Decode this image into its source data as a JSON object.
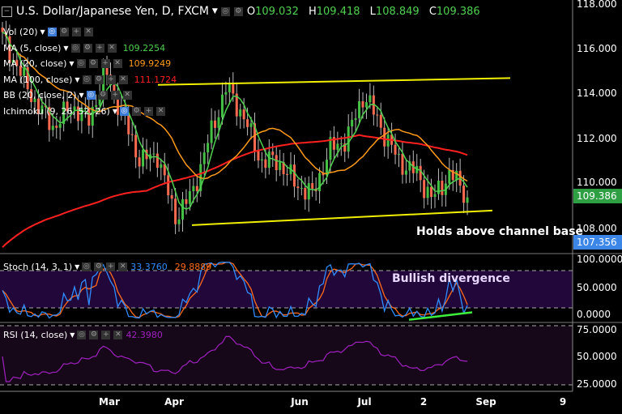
{
  "header": {
    "title": "U.S. Dollar/Japanese Yen, D, FXCM",
    "open_label": "O",
    "open": "109.032",
    "high_label": "H",
    "high": "109.418",
    "low_label": "L",
    "low": "108.849",
    "close_label": "C",
    "close": "109.386"
  },
  "indicators": [
    {
      "label": "Vol (20)",
      "value": "",
      "color": "#ffffff"
    },
    {
      "label": "MA (5, close)",
      "value": "109.2254",
      "color": "#4fd14f"
    },
    {
      "label": "MA (20, close)",
      "value": "109.9249",
      "color": "#ff9a1a"
    },
    {
      "label": "MA (100, close)",
      "value": "111.1724",
      "color": "#ff2020"
    },
    {
      "label": "BB (20, close, 2)",
      "value": "",
      "color": "#ffffff"
    },
    {
      "label": "Ichimoku (9, 26, 52, 26)",
      "value": "",
      "color": "#ffffff"
    }
  ],
  "stoch": {
    "label": "Stoch (14, 3, 1)",
    "k": "33.3760",
    "d": "29.8889",
    "k_color": "#2f8cff",
    "d_color": "#ff6a1a"
  },
  "rsi": {
    "label": "RSI (14, close)",
    "value": "42.3980",
    "color": "#a020c0"
  },
  "price_axis": [
    "118.000",
    "116.000",
    "114.000",
    "112.000",
    "110.000",
    "108.000"
  ],
  "price_tags": {
    "last": "109.386",
    "last_color": "#2ea043",
    "other": "107.356",
    "other_color": "#3c86e8"
  },
  "stoch_axis": [
    "100.0000",
    "50.0000",
    "0.0000"
  ],
  "rsi_axis": [
    "75.0000",
    "50.0000",
    "25.0000"
  ],
  "x_axis": [
    "Mar",
    "Apr",
    "Jun",
    "Jul",
    "2",
    "Sep",
    "9"
  ],
  "annotations": {
    "channel": "Holds above channel base",
    "divergence": "Bullish divergence"
  },
  "chart_data": {
    "type": "candlestick",
    "price_path": [
      116.5,
      115,
      113.5,
      112.5,
      113.5,
      112.8,
      115,
      113,
      111,
      111.3,
      108.5,
      109.5,
      112,
      114.3,
      113,
      111,
      111,
      110,
      109.5,
      111.5,
      112,
      114,
      112.5,
      111,
      110.5,
      109.3,
      110.5,
      109.4
    ],
    "channel": {
      "upper": [
        114.4,
        114.7
      ],
      "lower": [
        108.15,
        108.8
      ]
    },
    "ylim": [
      107.2,
      118.2
    ]
  }
}
